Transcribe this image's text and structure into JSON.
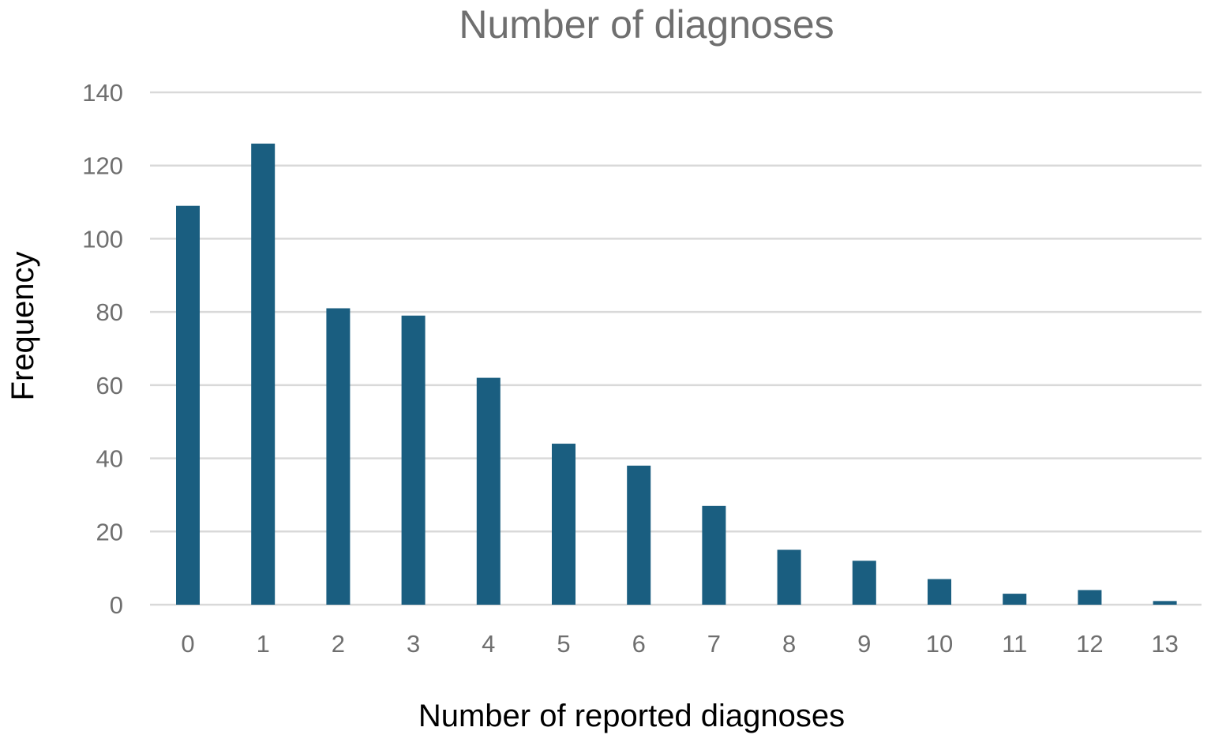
{
  "chart_data": {
    "type": "bar",
    "title": "Number of diagnoses",
    "xlabel": "Number of reported diagnoses",
    "ylabel": "Frequency",
    "categories": [
      "0",
      "1",
      "2",
      "3",
      "4",
      "5",
      "6",
      "7",
      "8",
      "9",
      "10",
      "11",
      "12",
      "13"
    ],
    "values": [
      109,
      126,
      81,
      79,
      62,
      44,
      38,
      27,
      15,
      12,
      7,
      3,
      4,
      1
    ],
    "ylim": [
      0,
      140
    ],
    "yticks": [
      0,
      20,
      40,
      60,
      80,
      100,
      120,
      140
    ],
    "grid": true,
    "legend": "none",
    "colors": {
      "bar": "#1a5e80",
      "grid": "#d9d9d9",
      "tick_text": "#6f6f6f",
      "title_text": "#6f6f6f",
      "axis_label_text": "#000000"
    }
  }
}
